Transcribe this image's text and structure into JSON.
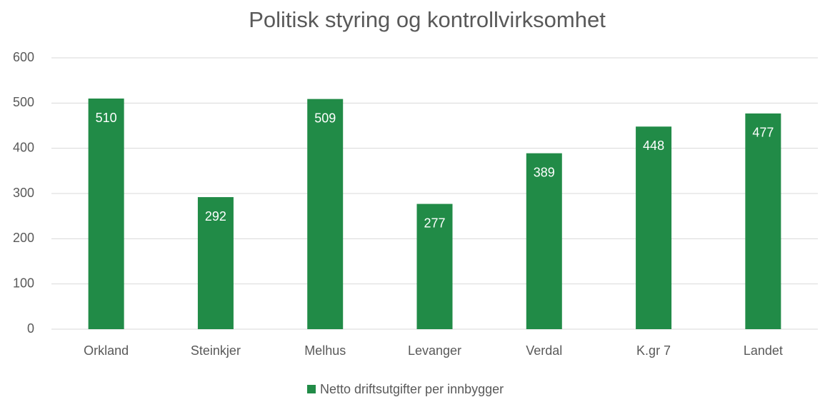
{
  "chart_data": {
    "type": "bar",
    "title": "Politisk styring og kontrollvirksomhet",
    "categories": [
      "Orkland",
      "Steinkjer",
      "Melhus",
      "Levanger",
      "Verdal",
      "K.gr 7",
      "Landet"
    ],
    "series": [
      {
        "name": "Netto driftsutgifter per innbygger",
        "color": "#218b47",
        "values": [
          510,
          292,
          509,
          277,
          389,
          448,
          477
        ]
      }
    ],
    "ylim": [
      0,
      600
    ],
    "yticks": [
      0,
      100,
      200,
      300,
      400,
      500,
      600
    ],
    "grid": true,
    "legend": "bottom"
  }
}
